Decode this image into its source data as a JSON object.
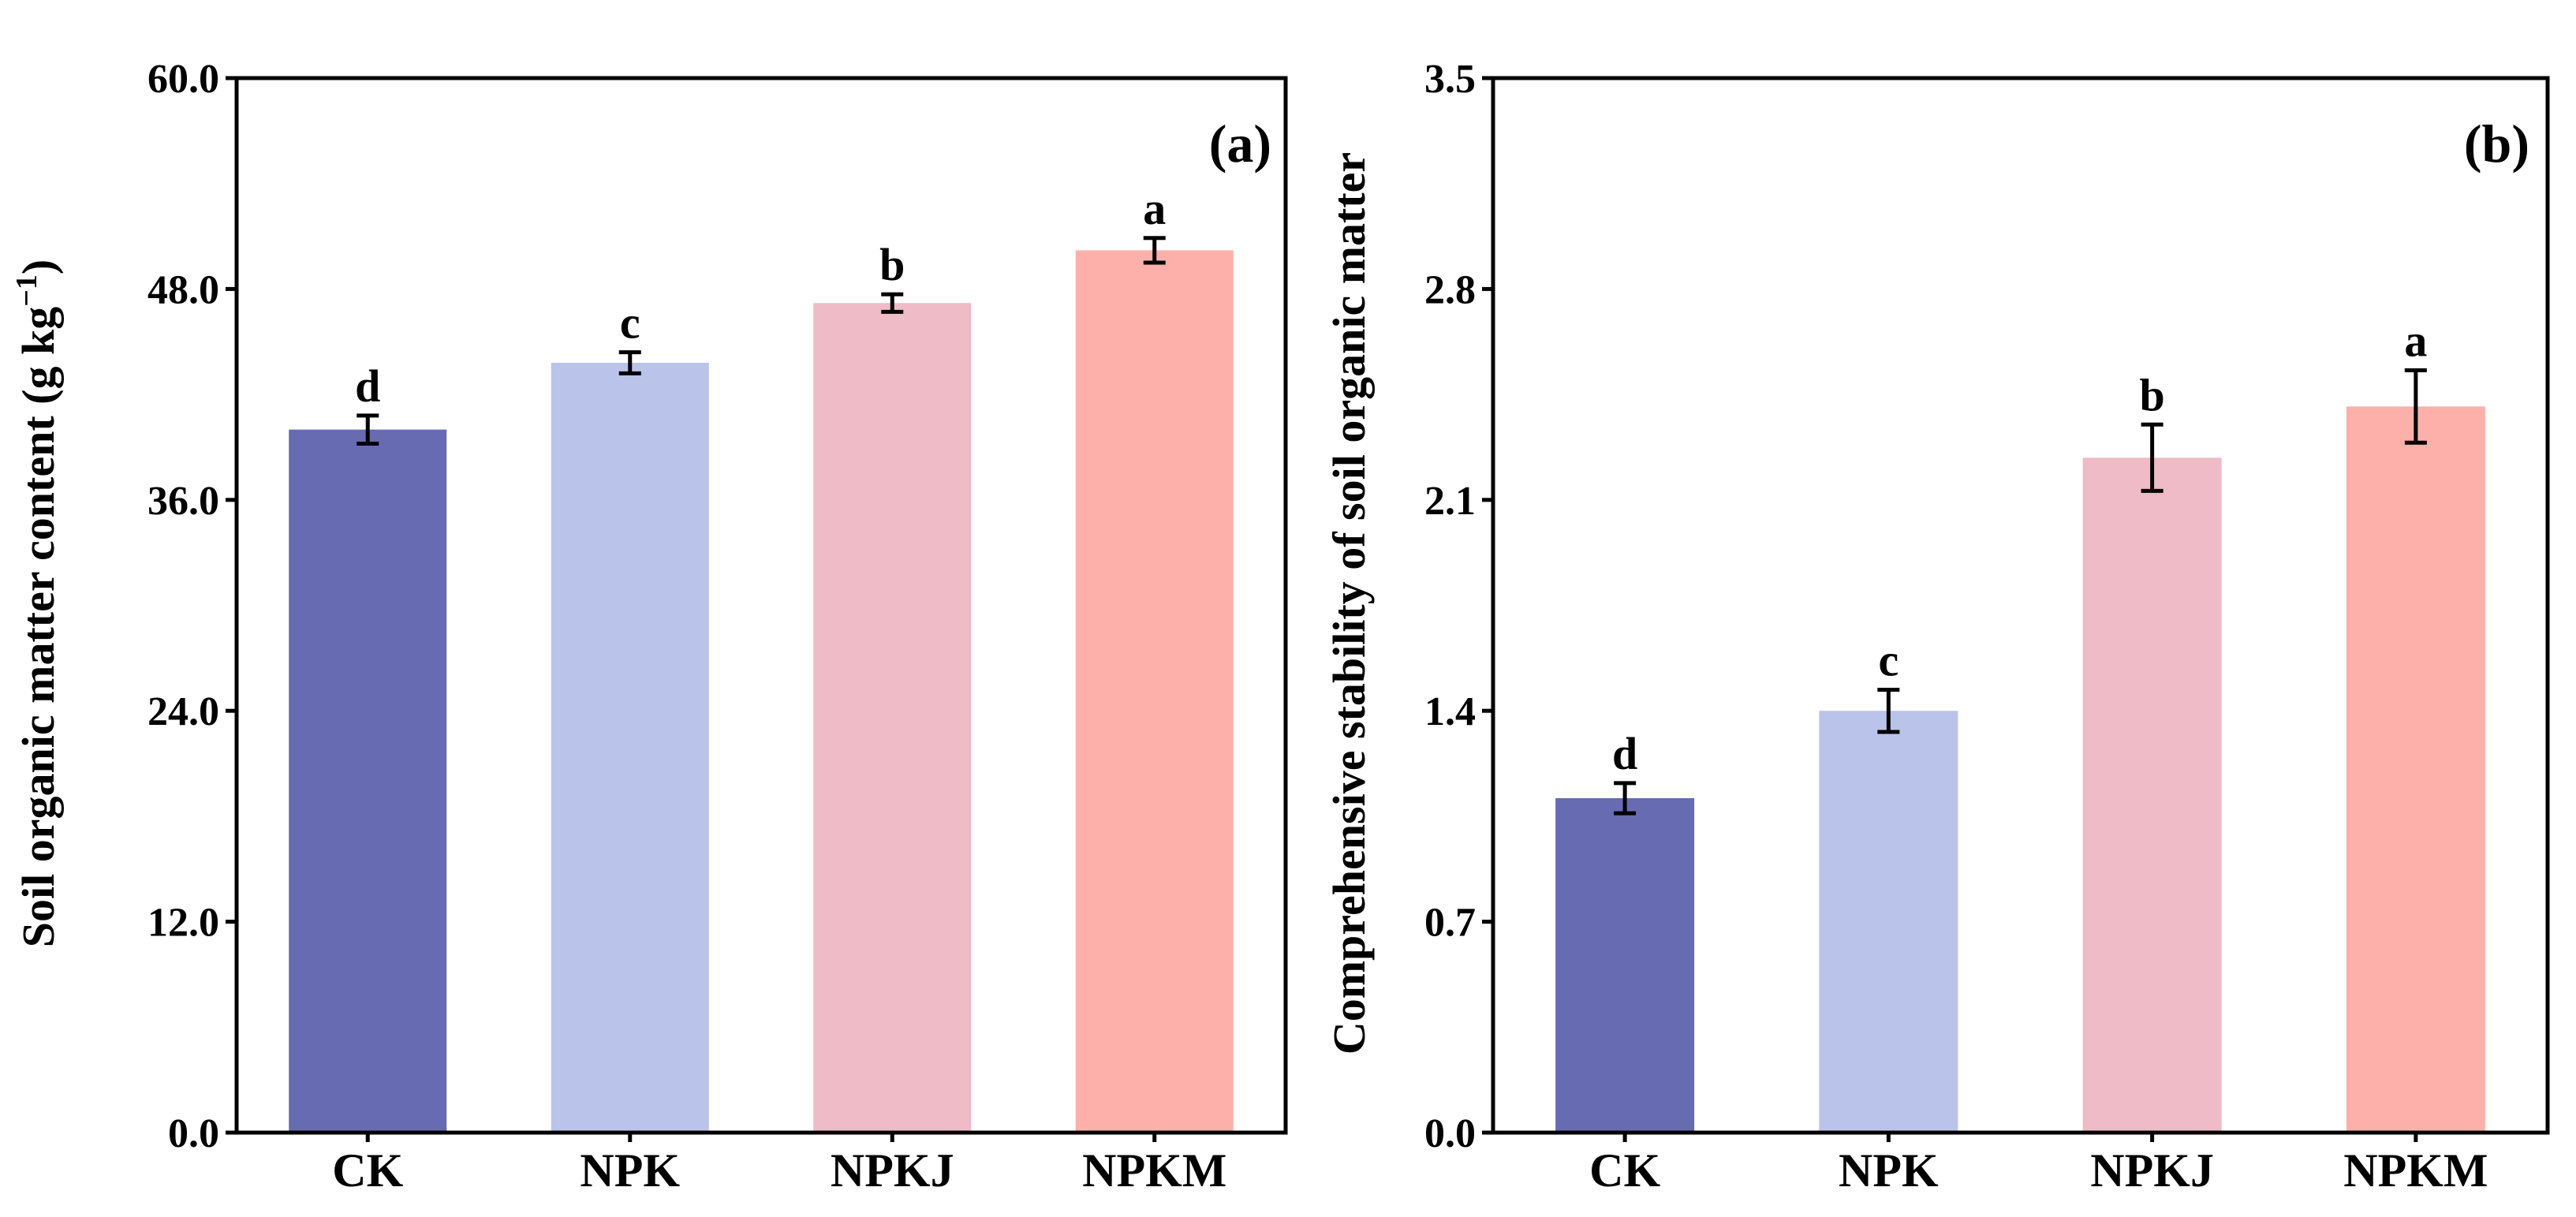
{
  "figure": {
    "colors": {
      "CK": "#676BB2",
      "NPK": "#BAC3EA",
      "NPKJ": "#EEBBC7",
      "NPKM": "#FDB0A9"
    }
  },
  "chart_data": [
    {
      "type": "bar",
      "panel_label": "(a)",
      "title": "",
      "xlabel": "",
      "ylabel": "Soil organic matter content (g kg",
      "ylabel_superscript": "−1",
      "ylabel_close": ")",
      "categories": [
        "CK",
        "NPK",
        "NPKJ",
        "NPKM"
      ],
      "values": [
        40.0,
        43.8,
        47.2,
        50.2
      ],
      "errors": [
        0.8,
        0.6,
        0.5,
        0.7
      ],
      "significance": [
        "d",
        "c",
        "b",
        "a"
      ],
      "ylim": [
        0,
        60
      ],
      "yticks": [
        "0.0",
        "12.0",
        "24.0",
        "36.0",
        "48.0",
        "60.0"
      ],
      "grid": false,
      "legend": "none"
    },
    {
      "type": "bar",
      "panel_label": "(b)",
      "title": "",
      "xlabel": "",
      "ylabel": "Comprehensive stability of soil organic matter",
      "categories": [
        "CK",
        "NPK",
        "NPKJ",
        "NPKM"
      ],
      "values": [
        1.11,
        1.4,
        2.24,
        2.41
      ],
      "errors": [
        0.05,
        0.07,
        0.11,
        0.12
      ],
      "significance": [
        "d",
        "c",
        "b",
        "a"
      ],
      "ylim": [
        0,
        3.5
      ],
      "yticks": [
        "0.0",
        "0.7",
        "1.4",
        "2.1",
        "2.8",
        "3.5"
      ],
      "grid": false,
      "legend": "none"
    }
  ]
}
